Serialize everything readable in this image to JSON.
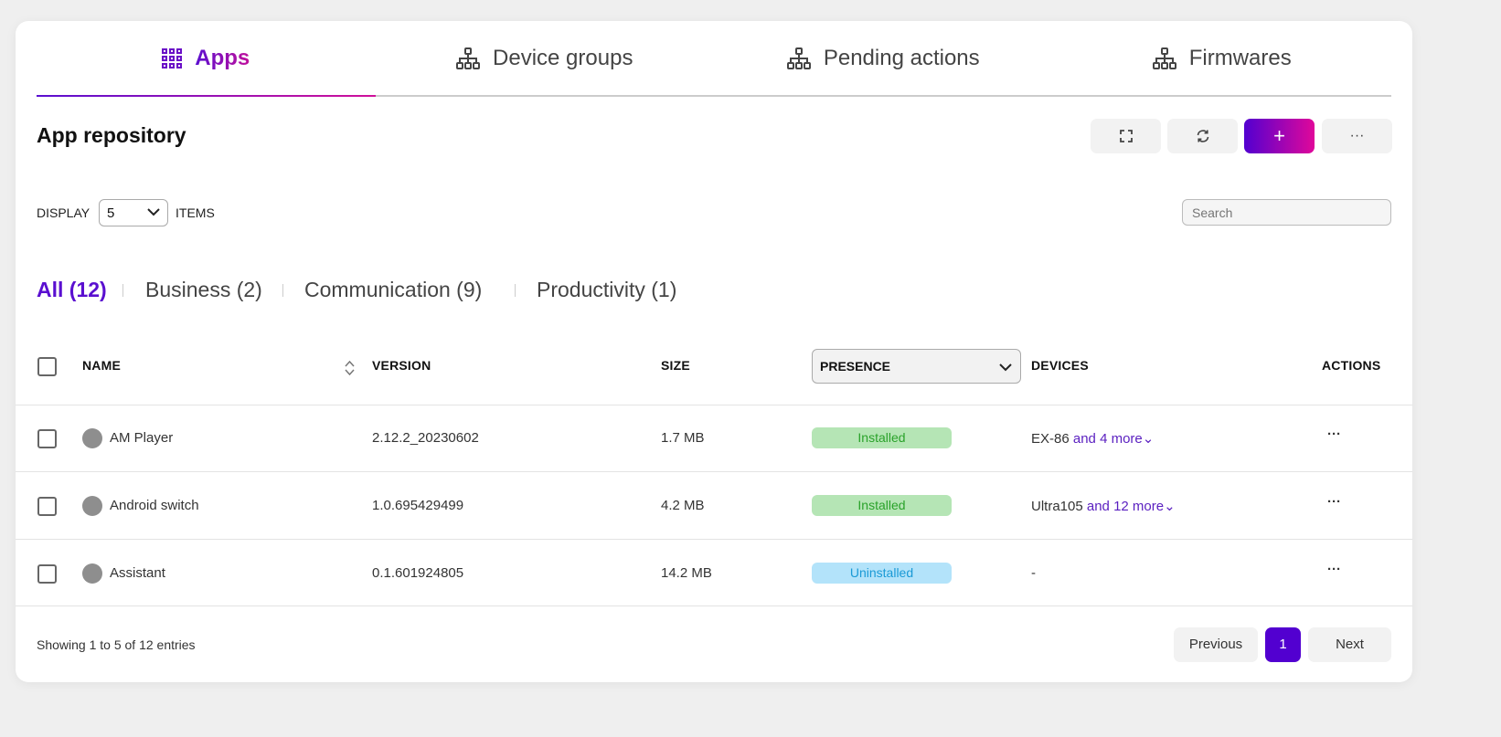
{
  "tabs": [
    {
      "label": "Apps",
      "icon": "grid-icon",
      "active": true
    },
    {
      "label": "Device groups",
      "icon": "hierarchy-icon"
    },
    {
      "label": "Pending actions",
      "icon": "hierarchy-icon"
    },
    {
      "label": "Firmwares",
      "icon": "hierarchy-icon"
    }
  ],
  "title": "App repository",
  "toolbar": {
    "fullscreen": "fullscreen-icon",
    "refresh": "refresh-icon",
    "add": "+",
    "more": "···"
  },
  "display": {
    "prefix": "DISPLAY",
    "value": "5",
    "suffix": "ITEMS"
  },
  "search": {
    "placeholder": "Search",
    "value": ""
  },
  "categories": [
    {
      "label": "All (12)",
      "active": true
    },
    {
      "label": "Business (2)"
    },
    {
      "label": "Communication (9)"
    },
    {
      "label": "Productivity (1)"
    }
  ],
  "columns": {
    "name": "NAME",
    "version": "VERSION",
    "size": "SIZE",
    "presence": "PRESENCE",
    "devices": "DEVICES",
    "actions": "ACTIONS"
  },
  "rows": [
    {
      "name": "AM Player",
      "version": "2.12.2_20230602",
      "size": "1.7 MB",
      "presence": "Installed",
      "device": "EX-86",
      "more": "and 4 more"
    },
    {
      "name": "Android switch",
      "version": "1.0.695429499",
      "size": "4.2 MB",
      "presence": "Installed",
      "device": "Ultra105",
      "more": "and 12 more"
    },
    {
      "name": "Assistant",
      "version": "0.1.601924805",
      "size": "14.2 MB",
      "presence": "Uninstalled",
      "device": "-",
      "more": ""
    }
  ],
  "footer": {
    "info": "Showing 1 to 5 of 12 entries",
    "previous": "Previous",
    "page": "1",
    "next": "Next"
  },
  "colors": {
    "accent": "#5a0fd0",
    "accent2": "#d0109a",
    "installed_bg": "#b5e5b5",
    "installed_text": "#2aa22a",
    "uninstalled_bg": "#b3e3fa",
    "uninstalled_text": "#1a9ad6"
  }
}
